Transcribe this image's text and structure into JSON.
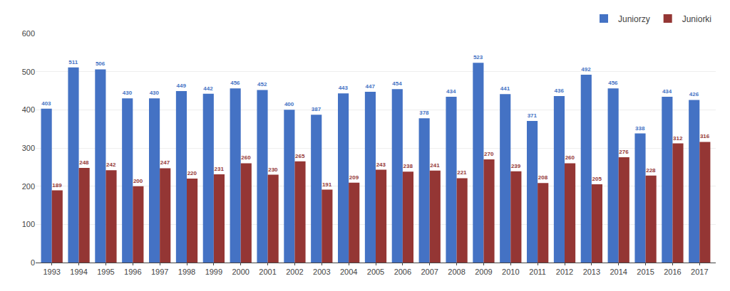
{
  "chart_data": {
    "type": "bar",
    "categories": [
      1993,
      1994,
      1995,
      1996,
      1997,
      1998,
      1999,
      2000,
      2001,
      2002,
      2003,
      2004,
      2005,
      2006,
      2007,
      2008,
      2009,
      2010,
      2011,
      2012,
      2013,
      2014,
      2015,
      2016,
      2017
    ],
    "series": [
      {
        "name": "Juniorzy",
        "color": "#4472C4",
        "values": [
          403,
          511,
          506,
          430,
          430,
          449,
          442,
          456,
          452,
          400,
          387,
          443,
          447,
          454,
          378,
          434,
          523,
          441,
          371,
          436,
          492,
          456,
          338,
          434,
          426
        ]
      },
      {
        "name": "Juniorki",
        "color": "#943634",
        "values": [
          189,
          248,
          242,
          200,
          247,
          220,
          231,
          260,
          230,
          265,
          191,
          209,
          243,
          238,
          241,
          221,
          270,
          239,
          208,
          260,
          205,
          276,
          228,
          312,
          316
        ]
      }
    ],
    "ylim": [
      0,
      600
    ],
    "yticks": [
      0,
      100,
      200,
      300,
      400,
      500,
      600
    ],
    "grid": true,
    "legend": "upper right",
    "data_labels": true
  }
}
